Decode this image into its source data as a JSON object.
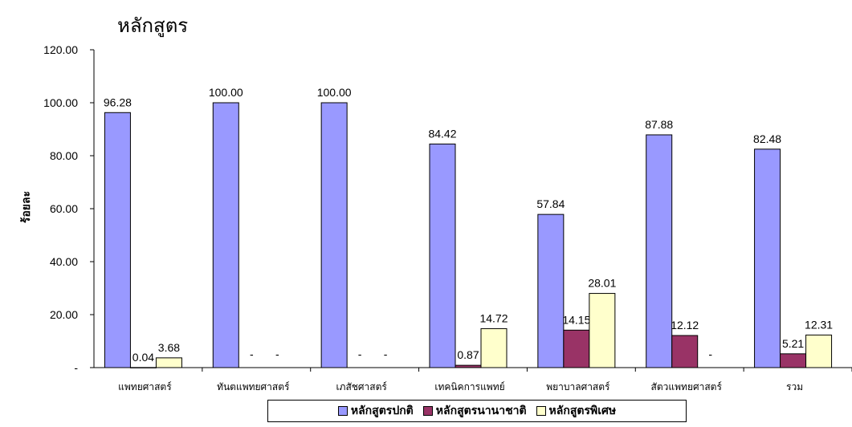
{
  "chart_data": {
    "type": "bar",
    "title": "หลักสูตร",
    "xlabel": "",
    "ylabel": "ร้อยละ",
    "ylim": [
      0,
      120
    ],
    "yticks": [
      0,
      20,
      40,
      60,
      80,
      100,
      120
    ],
    "ytick_labels": [
      "-",
      "20.00",
      "40.00",
      "60.00",
      "80.00",
      "100.00",
      "120.00"
    ],
    "grid": false,
    "legend_position": "bottom",
    "categories": [
      "แพทยศาสตร์",
      "ทันตแพทยศาสตร์",
      "เภสัชศาสตร์",
      "เทคนิคการแพทย์",
      "พยาบาลศาสตร์",
      "สัตวแพทยศาสตร์",
      "รวม"
    ],
    "series": [
      {
        "name": "หลักสูตรปกติ",
        "color": "#9999ff",
        "values": [
          96.28,
          100.0,
          100.0,
          84.42,
          57.84,
          87.88,
          82.48
        ],
        "labels": [
          "96.28",
          "100.00",
          "100.00",
          "84.42",
          "57.84",
          "87.88",
          "82.48"
        ]
      },
      {
        "name": "หลักสูตรนานาชาติ",
        "color": "#993366",
        "values": [
          0.04,
          0,
          0,
          0.87,
          14.15,
          12.12,
          5.21
        ],
        "labels": [
          "0.04",
          "-",
          "-",
          "0.87",
          "14.15",
          "12.12",
          "5.21"
        ]
      },
      {
        "name": "หลักสูตรพิเศษ",
        "color": "#ffffcc",
        "values": [
          3.68,
          0,
          0,
          14.72,
          28.01,
          0,
          12.31
        ],
        "labels": [
          "3.68",
          "-",
          "-",
          "14.72",
          "28.01",
          "-",
          "12.31"
        ]
      }
    ]
  }
}
